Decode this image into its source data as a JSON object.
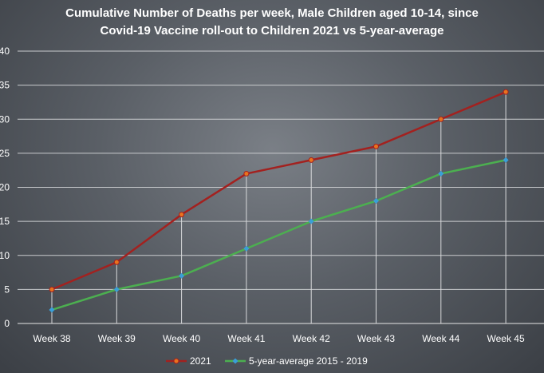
{
  "chart_data": {
    "type": "line",
    "title_line1": "Cumulative Number of Deaths per week, Male Children aged 10-14, since",
    "title_line2": "Covid-19 Vaccine roll-out to Children 2021 vs 5-year-average",
    "categories": [
      "Week 38",
      "Week 39",
      "Week 40",
      "Week 41",
      "Week 42",
      "Week 43",
      "Week 44",
      "Week 45"
    ],
    "ylim": [
      0,
      40
    ],
    "yticks": [
      0,
      5,
      10,
      15,
      20,
      25,
      30,
      35,
      40
    ],
    "grid": true,
    "legend_position": "bottom",
    "series": [
      {
        "name": "2021",
        "color": "#a3211f",
        "marker_color": "#e8731e",
        "values": [
          5,
          9,
          16,
          22,
          24,
          26,
          30,
          34
        ]
      },
      {
        "name": "5-year-average 2015 - 2019",
        "color": "#4caf50",
        "marker_color": "#3a9fd8",
        "values": [
          2,
          5,
          7,
          11,
          15,
          18,
          22,
          24
        ]
      }
    ]
  }
}
